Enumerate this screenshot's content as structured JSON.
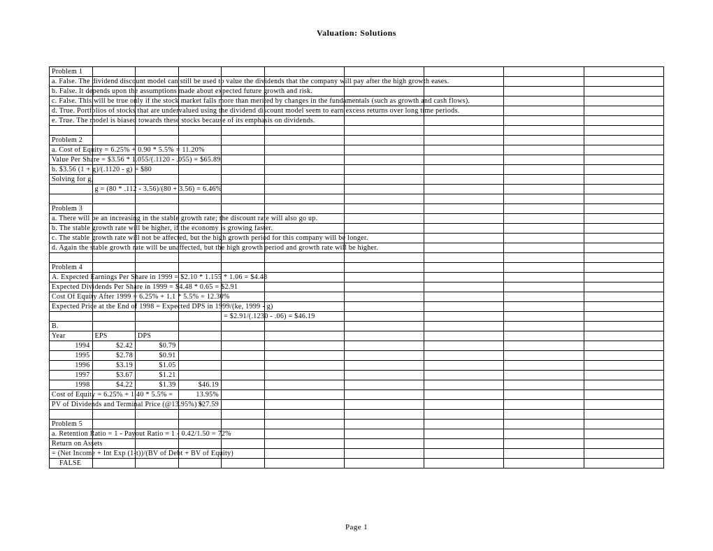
{
  "title": "Valuation: Solutions",
  "footer": "Page 1",
  "table": {
    "cols": 10,
    "col_widths_pct": [
      7,
      7,
      7,
      7,
      7,
      13,
      13,
      13,
      13,
      13
    ],
    "rows": [
      [
        {
          "t": "Problem 1"
        }
      ],
      [
        {
          "t": "a. False. The dividend discount model can still be used to value the dividends that the company will pay after the high growth eases."
        }
      ],
      [
        {
          "t": "b. False. It depends upon the assumptions made about expected future growth and risk."
        }
      ],
      [
        {
          "t": "c. False. This will be true only if the stock market falls more than merited by changes in the fundamentals (such as growth and cash flows)."
        }
      ],
      [
        {
          "t": "d. True. Portfolios of stocks that are undervalued using the dividend discount model seem to earn excess returns over long time periods."
        }
      ],
      [
        {
          "t": "e. True. The model is biased towards these stocks because of its emphasis on dividends."
        }
      ],
      [],
      [
        {
          "t": "Problem 2"
        }
      ],
      [
        {
          "t": "a. Cost of Equity = 6.25% + 0.90 * 5.5% = 11.20%"
        }
      ],
      [
        {
          "t": "Value Per Share = $3.56 * 1.055/(.1120 - .055) = $65.89"
        }
      ],
      [
        {
          "t": "b. $3.56 (1 + g)/(.1120 - g) = $80"
        }
      ],
      [
        {
          "t": "Solving for g,"
        }
      ],
      [
        null,
        {
          "t": "g = (80 * .112 - 3.56)/(80 + 3.56) = 6.46%"
        }
      ],
      [],
      [
        {
          "t": "Problem 3"
        }
      ],
      [
        {
          "t": "a. There will be an increasing in the stable growth rate; the discount rate will also go up."
        }
      ],
      [
        {
          "t": "b. The stable growth rate will be higher, if the economy is growing faster."
        }
      ],
      [
        {
          "t": "c. The stable growth rate will not be affected, but the high growth period for this company will be longer."
        }
      ],
      [
        {
          "t": "d. Again the stable growth rate will be unaffected, but the high growth period and growth rate will be higher."
        }
      ],
      [],
      [
        {
          "t": "Problem 4"
        }
      ],
      [
        {
          "t": "A. Expected Earnings Per Share in 1999 = $2.10 * 1.155  * 1.06 = $4.48"
        }
      ],
      [
        {
          "t": "Expected Dividends Per Share in 1999 = $4.48 * 0.65 = $2.91"
        }
      ],
      [
        {
          "t": "Cost Of Equity After 1999 = 6.25% + 1.1 * 5.5% = 12.30%"
        }
      ],
      [
        {
          "t": "Expected Price at the End of 1998 = Expected DPS in 1999/(ke, 1999 - g)"
        }
      ],
      [
        null,
        null,
        null,
        null,
        {
          "t": "= $2.91/(.1230 - .06) = $46.19"
        }
      ],
      [
        {
          "t": "B."
        }
      ],
      [
        {
          "t": "Year"
        },
        {
          "t": "EPS"
        },
        {
          "t": "DPS"
        }
      ],
      [
        {
          "t": "1994",
          "a": "r"
        },
        {
          "t": "$2.42",
          "a": "r"
        },
        {
          "t": "$0.79",
          "a": "r"
        }
      ],
      [
        {
          "t": "1995",
          "a": "r"
        },
        {
          "t": "$2.78",
          "a": "r"
        },
        {
          "t": "$0.91",
          "a": "r"
        }
      ],
      [
        {
          "t": "1996",
          "a": "r"
        },
        {
          "t": "$3.19",
          "a": "r"
        },
        {
          "t": "$1.05",
          "a": "r"
        }
      ],
      [
        {
          "t": "1997",
          "a": "r"
        },
        {
          "t": "$3.67",
          "a": "r"
        },
        {
          "t": "$1.21",
          "a": "r"
        }
      ],
      [
        {
          "t": "1998",
          "a": "r"
        },
        {
          "t": "$4.22",
          "a": "r"
        },
        {
          "t": "$1.39",
          "a": "r"
        },
        {
          "t": "$46.19",
          "a": "r"
        }
      ],
      [
        {
          "t": "Cost of Equity = 6.25% + 1.40 * 5.5% ="
        },
        null,
        null,
        {
          "t": "13.95%",
          "a": "r"
        }
      ],
      [
        {
          "t": "PV of Dividends and Terminal Price (@13.95%) ="
        },
        null,
        null,
        {
          "t": "$27.59",
          "a": "r"
        }
      ],
      [],
      [
        {
          "t": "Problem 5"
        }
      ],
      [
        {
          "t": "a. Retention Ratio = 1 - Payout Ratio = 1 - 0.42/1.50 = 72%"
        }
      ],
      [
        {
          "t": "Return on Assets"
        }
      ],
      [
        {
          "t": "= (Net Income + Int Exp (1-t))/(BV of Debt + BV of Equity)"
        }
      ],
      [
        {
          "t": "FALSE",
          "indent": true
        }
      ]
    ]
  }
}
